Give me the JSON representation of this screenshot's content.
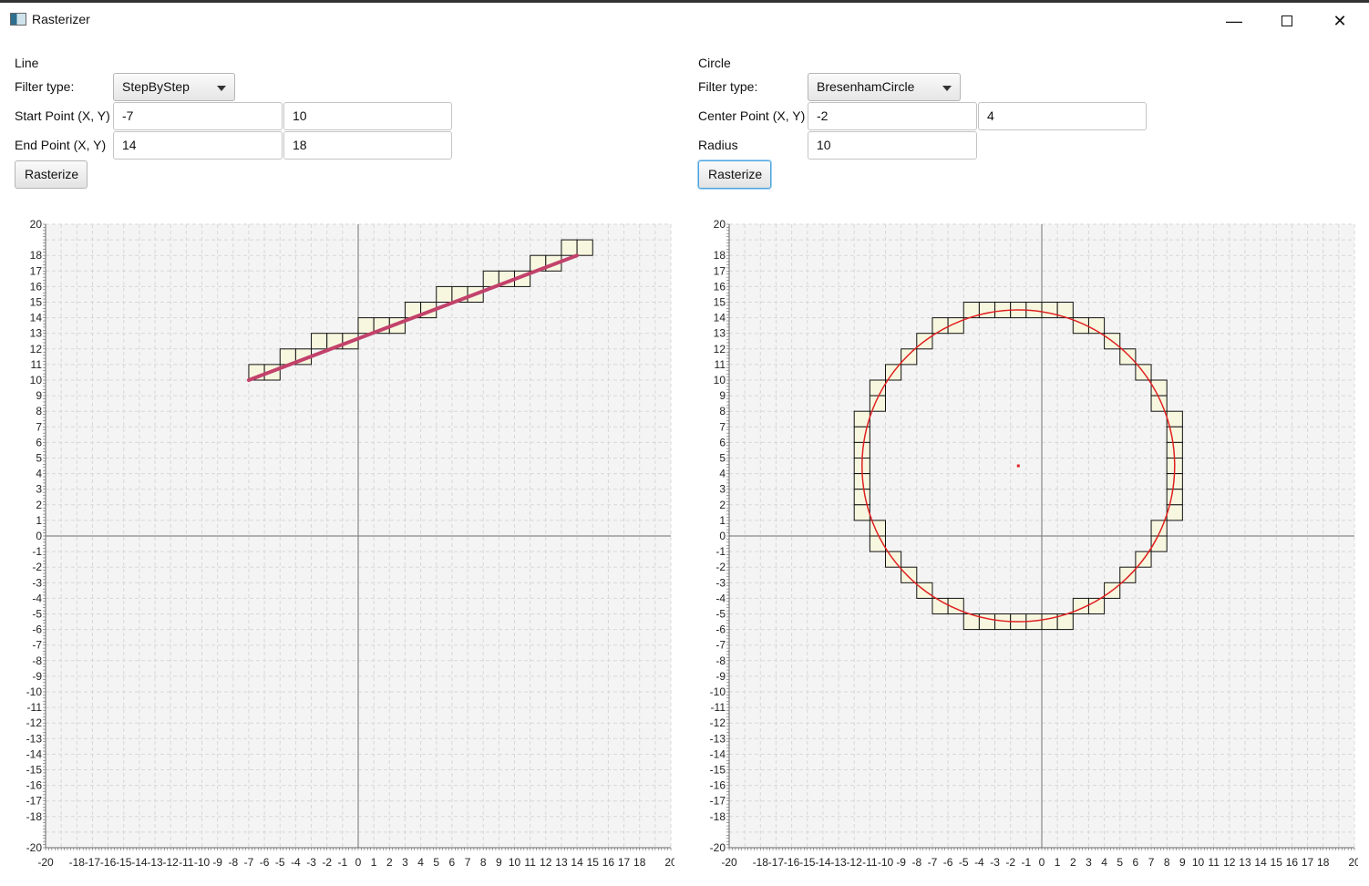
{
  "window": {
    "title": "Rasterizer",
    "minimize_symbol": "—",
    "close_symbol": "✕"
  },
  "line_panel": {
    "heading": "Line",
    "filter_label": "Filter type:",
    "filter_value": "StepByStep",
    "start_label": "Start Point (X, Y)",
    "start_x": "-7",
    "start_y": "10",
    "end_label": "End Point (X, Y)",
    "end_x": "14",
    "end_y": "18",
    "button": "Rasterize"
  },
  "circle_panel": {
    "heading": "Circle",
    "filter_label": "Filter type:",
    "filter_value": "BresenhamCircle",
    "center_label": "Center Point (X, Y)",
    "center_x": "-2",
    "center_y": "4",
    "radius_label": "Radius",
    "radius": "10",
    "button": "Rasterize"
  },
  "colors": {
    "plot_background": "#f4f4f4",
    "grid": "#d8d8d8",
    "axis": "#888888",
    "pixel_fill": "#f7f7e0",
    "pixel_stroke": "#111111",
    "line_color": "#c2426b",
    "circle_color": "#e02020"
  },
  "chart_data": [
    {
      "type": "scatter",
      "name": "line-plot",
      "xlim": [
        -20,
        20
      ],
      "ylim": [
        -20,
        20
      ],
      "grid": true,
      "x_ticks": [
        -20,
        -18,
        -17,
        -16,
        -15,
        -14,
        -13,
        -12,
        -11,
        -10,
        -9,
        -8,
        -7,
        -6,
        -5,
        -4,
        -3,
        -2,
        -1,
        0,
        1,
        2,
        3,
        4,
        5,
        6,
        7,
        8,
        9,
        10,
        11,
        12,
        13,
        14,
        15,
        16,
        17,
        18,
        20
      ],
      "y_ticks": [
        -20,
        -18,
        -17,
        -16,
        -15,
        -14,
        -13,
        -12,
        -11,
        -10,
        -9,
        -8,
        -7,
        -6,
        -5,
        -4,
        -3,
        -2,
        -1,
        0,
        1,
        2,
        3,
        4,
        5,
        6,
        7,
        8,
        9,
        10,
        11,
        12,
        13,
        14,
        15,
        16,
        17,
        18,
        20
      ],
      "segment": {
        "x1": -7,
        "y1": 10,
        "x2": 14,
        "y2": 18
      },
      "pixels": [
        [
          -7,
          10
        ],
        [
          -6,
          10
        ],
        [
          -5,
          11
        ],
        [
          -4,
          11
        ],
        [
          -3,
          12
        ],
        [
          -2,
          12
        ],
        [
          -1,
          12
        ],
        [
          0,
          13
        ],
        [
          1,
          13
        ],
        [
          2,
          13
        ],
        [
          3,
          14
        ],
        [
          4,
          14
        ],
        [
          5,
          15
        ],
        [
          6,
          15
        ],
        [
          7,
          15
        ],
        [
          8,
          16
        ],
        [
          9,
          16
        ],
        [
          10,
          16
        ],
        [
          11,
          17
        ],
        [
          12,
          17
        ],
        [
          13,
          18
        ],
        [
          14,
          18
        ]
      ]
    },
    {
      "type": "scatter",
      "name": "circle-plot",
      "xlim": [
        -20,
        20
      ],
      "ylim": [
        -20,
        20
      ],
      "grid": true,
      "x_ticks": [
        -20,
        -18,
        -17,
        -16,
        -15,
        -14,
        -13,
        -12,
        -11,
        -10,
        -9,
        -8,
        -7,
        -6,
        -5,
        -4,
        -3,
        -2,
        -1,
        0,
        1,
        2,
        3,
        4,
        5,
        6,
        7,
        8,
        9,
        10,
        11,
        12,
        13,
        14,
        15,
        16,
        17,
        18,
        20
      ],
      "y_ticks": [
        -20,
        -18,
        -17,
        -16,
        -15,
        -14,
        -13,
        -12,
        -11,
        -10,
        -9,
        -8,
        -7,
        -6,
        -5,
        -4,
        -3,
        -2,
        -1,
        0,
        1,
        2,
        3,
        4,
        5,
        6,
        7,
        8,
        9,
        10,
        11,
        12,
        13,
        14,
        15,
        16,
        17,
        18,
        20
      ],
      "circle": {
        "cx": -2,
        "cy": 4,
        "r": 10
      },
      "pixels": [
        [
          -5,
          14
        ],
        [
          -4,
          14
        ],
        [
          -3,
          14
        ],
        [
          -2,
          14
        ],
        [
          -1,
          14
        ],
        [
          0,
          14
        ],
        [
          1,
          14
        ],
        [
          -7,
          13
        ],
        [
          -6,
          13
        ],
        [
          2,
          13
        ],
        [
          3,
          13
        ],
        [
          -8,
          12
        ],
        [
          4,
          12
        ],
        [
          -9,
          11
        ],
        [
          5,
          11
        ],
        [
          -10,
          10
        ],
        [
          6,
          10
        ],
        [
          -11,
          9
        ],
        [
          7,
          9
        ],
        [
          -11,
          8
        ],
        [
          7,
          8
        ],
        [
          -12,
          7
        ],
        [
          8,
          7
        ],
        [
          -12,
          6
        ],
        [
          8,
          6
        ],
        [
          -12,
          5
        ],
        [
          8,
          5
        ],
        [
          -12,
          4
        ],
        [
          8,
          4
        ],
        [
          -12,
          3
        ],
        [
          8,
          3
        ],
        [
          -12,
          2
        ],
        [
          8,
          2
        ],
        [
          -12,
          1
        ],
        [
          8,
          1
        ],
        [
          -11,
          0
        ],
        [
          7,
          0
        ],
        [
          -11,
          -1
        ],
        [
          7,
          -1
        ],
        [
          -10,
          -2
        ],
        [
          6,
          -2
        ],
        [
          -9,
          -3
        ],
        [
          5,
          -3
        ],
        [
          -8,
          -4
        ],
        [
          4,
          -4
        ],
        [
          -7,
          -5
        ],
        [
          -6,
          -5
        ],
        [
          2,
          -5
        ],
        [
          3,
          -5
        ],
        [
          -5,
          -6
        ],
        [
          -4,
          -6
        ],
        [
          -3,
          -6
        ],
        [
          -2,
          -6
        ],
        [
          -1,
          -6
        ],
        [
          0,
          -6
        ],
        [
          1,
          -6
        ]
      ]
    }
  ]
}
